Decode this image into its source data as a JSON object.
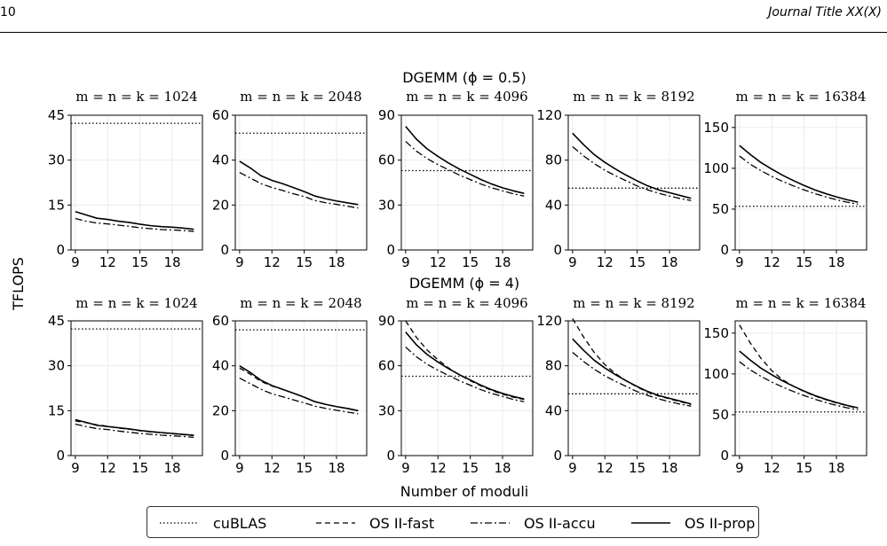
{
  "header": {
    "page_number": "10",
    "journal_title": "Journal Title XX(X)"
  },
  "chart_data": {
    "type": "line",
    "ylabel": "TFLOPS",
    "xlabel": "Number of moduli",
    "x": [
      9,
      10,
      11,
      12,
      13,
      14,
      15,
      16,
      17,
      18,
      19,
      20
    ],
    "xticks": [
      9,
      12,
      15,
      18
    ],
    "legend": {
      "placement": "bottom-center",
      "entries": [
        {
          "name": "cuBLAS",
          "style": "dotted"
        },
        {
          "name": "OS II-fast",
          "style": "dashed"
        },
        {
          "name": "OS II-accu",
          "style": "dashdot"
        },
        {
          "name": "OS II-prop",
          "style": "solid"
        }
      ]
    },
    "rows": [
      {
        "title_prefix": "DGEMM",
        "title_math": "(ϕ = 0.5)",
        "panels": [
          {
            "title": "m = n = k = 1024",
            "ylim": [
              0,
              45
            ],
            "yticks": [
              0,
              15,
              30,
              45
            ],
            "series": {
              "cuBLAS": [
                42.3
              ],
              "OS II-prop": [
                12.8,
                11.7,
                10.6,
                10.2,
                9.6,
                9.2,
                8.6,
                8.1,
                7.8,
                7.6,
                7.3,
                6.9
              ],
              "OS II-accu": [
                10.5,
                9.6,
                9.0,
                8.7,
                8.3,
                7.9,
                7.4,
                7.1,
                6.8,
                6.7,
                6.5,
                6.2
              ]
            }
          },
          {
            "title": "m = n = k = 2048",
            "ylim": [
              0,
              60
            ],
            "yticks": [
              0,
              20,
              40,
              60
            ],
            "series": {
              "cuBLAS": [
                52.0
              ],
              "OS II-prop": [
                39.5,
                36.5,
                33.0,
                31.0,
                29.5,
                27.8,
                26.0,
                24.0,
                22.8,
                21.8,
                21.0,
                20.2
              ],
              "OS II-accu": [
                34.5,
                32.0,
                29.5,
                27.8,
                26.5,
                25.0,
                23.8,
                22.0,
                21.0,
                20.3,
                19.5,
                18.7
              ]
            }
          },
          {
            "title": "m = n = k = 4096",
            "ylim": [
              0,
              90
            ],
            "yticks": [
              0,
              30,
              60,
              90
            ],
            "series": {
              "cuBLAS": [
                53.0
              ],
              "OS II-prop": [
                82.5,
                74.0,
                67.5,
                62.5,
                58.0,
                54.0,
                50.5,
                47.0,
                44.0,
                41.5,
                39.5,
                37.8
              ],
              "OS II-accu": [
                72.5,
                66.0,
                61.0,
                57.0,
                53.5,
                50.0,
                47.0,
                44.0,
                41.5,
                39.5,
                37.5,
                36.0
              ]
            }
          },
          {
            "title": "m = n = k = 8192",
            "ylim": [
              0,
              120
            ],
            "yticks": [
              0,
              40,
              80,
              120
            ],
            "series": {
              "cuBLAS": [
                55.0
              ],
              "OS II-prop": [
                104.0,
                94.0,
                85.0,
                78.0,
                72.0,
                66.5,
                61.5,
                57.0,
                53.5,
                51.0,
                48.5,
                46.0
              ],
              "OS II-accu": [
                92.0,
                84.0,
                77.0,
                71.0,
                66.0,
                61.5,
                57.0,
                53.5,
                50.5,
                48.0,
                45.8,
                44.0
              ]
            }
          },
          {
            "title": "m = n = k = 16384",
            "ylim": [
              0,
              165
            ],
            "yticks": [
              0,
              50,
              100,
              150
            ],
            "series": {
              "cuBLAS": [
                53.5
              ],
              "OS II-prop": [
                128.0,
                117.0,
                107.0,
                99.0,
                91.5,
                85.0,
                79.0,
                73.5,
                69.0,
                65.0,
                61.5,
                58.5
              ],
              "OS II-accu": [
                115.0,
                105.0,
                97.0,
                90.0,
                84.0,
                78.5,
                73.5,
                69.0,
                65.0,
                61.5,
                58.5,
                56.0
              ]
            }
          }
        ]
      },
      {
        "title_prefix": "DGEMM",
        "title_math": "(ϕ = 4)",
        "panels": [
          {
            "title": "m = n = k = 1024",
            "ylim": [
              0,
              45
            ],
            "yticks": [
              0,
              15,
              30,
              45
            ],
            "series": {
              "cuBLAS": [
                42.3
              ],
              "OS II-fast": [
                11.6,
                11.0,
                10.3,
                9.8,
                9.2,
                8.8,
                8.3,
                7.9,
                7.6,
                7.3,
                7.0,
                6.7
              ],
              "OS II-accu": [
                10.5,
                9.7,
                9.0,
                8.7,
                8.2,
                7.8,
                7.4,
                7.1,
                6.8,
                6.6,
                6.4,
                6.1
              ],
              "OS II-prop": [
                12.0,
                11.1,
                10.1,
                9.7,
                9.3,
                8.9,
                8.4,
                8.0,
                7.7,
                7.4,
                7.1,
                6.8
              ]
            }
          },
          {
            "title": "m = n = k = 2048",
            "ylim": [
              0,
              60
            ],
            "yticks": [
              0,
              20,
              40,
              60
            ],
            "series": {
              "cuBLAS": [
                56.0
              ],
              "OS II-fast": [
                39.0,
                36.2,
                33.0,
                31.0,
                29.5,
                27.8,
                26.0,
                24.0,
                22.8,
                21.8,
                21.0,
                20.0
              ],
              "OS II-accu": [
                34.5,
                32.0,
                29.5,
                27.5,
                26.2,
                24.8,
                23.5,
                22.0,
                21.0,
                20.2,
                19.4,
                18.6
              ],
              "OS II-prop": [
                40.0,
                37.0,
                33.5,
                31.2,
                29.5,
                27.8,
                26.0,
                24.0,
                22.8,
                21.8,
                21.0,
                20.0
              ]
            }
          },
          {
            "title": "m = n = k = 4096",
            "ylim": [
              0,
              90
            ],
            "yticks": [
              0,
              30,
              60,
              90
            ],
            "series": {
              "cuBLAS": [
                53.0
              ],
              "OS II-fast": [
                90.0,
                79.0,
                70.5,
                64.0,
                58.5,
                54.0,
                50.0,
                46.5,
                43.5,
                41.0,
                39.0,
                37.5
              ],
              "OS II-accu": [
                72.5,
                66.0,
                61.0,
                57.0,
                53.5,
                50.0,
                47.0,
                44.0,
                41.5,
                39.5,
                37.5,
                36.0
              ],
              "OS II-prop": [
                82.5,
                74.0,
                67.5,
                62.5,
                58.0,
                54.0,
                50.5,
                47.0,
                44.0,
                41.5,
                39.5,
                37.8
              ]
            }
          },
          {
            "title": "m = n = k = 8192",
            "ylim": [
              0,
              120
            ],
            "yticks": [
              0,
              40,
              80,
              120
            ],
            "series": {
              "cuBLAS": [
                55.0
              ],
              "OS II-fast": [
                122.0,
                106.0,
                92.0,
                81.0,
                73.0,
                66.5,
                61.0,
                56.5,
                53.0,
                50.5,
                48.0,
                45.5
              ],
              "OS II-accu": [
                92.0,
                84.0,
                77.0,
                71.0,
                66.0,
                61.5,
                57.0,
                53.5,
                50.5,
                48.0,
                45.8,
                44.0
              ],
              "OS II-prop": [
                104.0,
                94.0,
                85.0,
                78.0,
                72.0,
                66.5,
                61.5,
                57.0,
                53.5,
                51.0,
                48.5,
                46.0
              ]
            }
          },
          {
            "title": "m = n = k = 16384",
            "ylim": [
              0,
              165
            ],
            "yticks": [
              0,
              50,
              100,
              150
            ],
            "series": {
              "cuBLAS": [
                53.5
              ],
              "OS II-fast": [
                160.0,
                138.0,
                119.0,
                104.0,
                93.0,
                85.0,
                78.5,
                73.0,
                68.5,
                64.5,
                61.0,
                58.0
              ],
              "OS II-accu": [
                115.0,
                105.0,
                97.0,
                90.0,
                84.0,
                78.5,
                73.5,
                69.0,
                65.0,
                61.5,
                58.5,
                56.0
              ],
              "OS II-prop": [
                128.0,
                117.0,
                107.0,
                99.0,
                91.5,
                85.0,
                79.0,
                73.5,
                69.0,
                65.0,
                61.5,
                58.5
              ]
            }
          }
        ]
      }
    ]
  }
}
